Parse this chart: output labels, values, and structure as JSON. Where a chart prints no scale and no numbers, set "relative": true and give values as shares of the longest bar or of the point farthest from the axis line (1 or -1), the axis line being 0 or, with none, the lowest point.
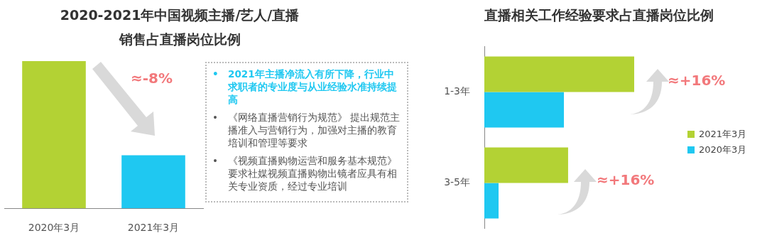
{
  "chart_data": [
    {
      "type": "bar",
      "title": "2020-2021年中国视频主播/艺人/直播销售占直播岗位比例",
      "categories": [
        "2020年3月",
        "2021年3月"
      ],
      "values": [
        1,
        0.36
      ],
      "colors": [
        "#b3d234",
        "#1fc8f1"
      ],
      "relative": true,
      "annotations": [
        "≈-8%"
      ]
    },
    {
      "type": "other",
      "annotations": [
        "•\t2021年主播净流入有所下降，行业中求职者的专业度与从业经验水准持续提高",
        "•\t《网络直播营销行为规范》 提出规范主播准入与营销行为，加强对主播的教育培训和管理等要求",
        "•\t《视频直播购物运营和服务基本规范》要求社媒视频直播购物出镜者应具有相关专业资质，经过专业培训"
      ]
    },
    {
      "type": "bar",
      "orientation": "horizontal",
      "title": "直播相关工作经验要求占直播岗位比例",
      "categories": [
        "1-3年",
        "3-5年"
      ],
      "relative": true,
      "legend": "right",
      "annotations": [
        "≈+16%",
        "≈+16%"
      ],
      "series": [
        {
          "name": "2021年3月",
          "color": "#b3d234",
          "values": [
            1,
            0.559
          ]
        },
        {
          "name": "2020年3月",
          "color": "#1fc8f1",
          "values": [
            0.531,
            0.095
          ]
        }
      ]
    }
  ]
}
